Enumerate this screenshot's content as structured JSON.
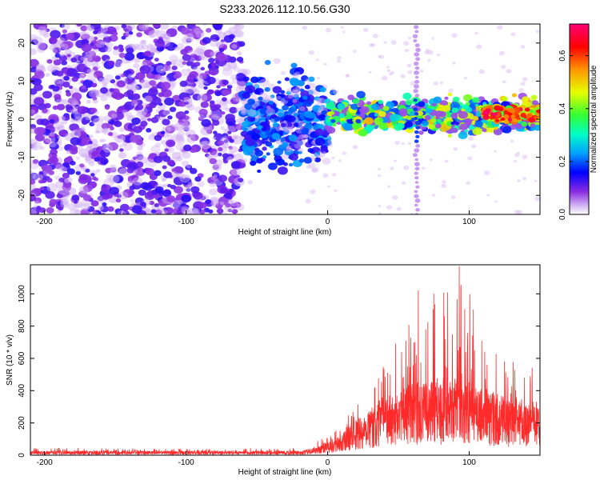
{
  "title": "S233.2026.112.10.56.G30",
  "chart_data": [
    {
      "type": "heatmap",
      "xlabel": "Height of straight line (km)",
      "ylabel": "Frequency (Hz)",
      "xlim": [
        -210,
        150
      ],
      "ylim": [
        -25,
        25
      ],
      "xticks": [
        -200,
        -100,
        0,
        100
      ],
      "yticks": [
        -20,
        -10,
        0,
        10,
        20
      ],
      "colorbar": {
        "label": "Normalized spectral amplitude",
        "range": [
          0.0,
          0.72
        ],
        "ticks": [
          0.0,
          0.2,
          0.4,
          0.6
        ],
        "tick_labels": [
          "0.0",
          "0.2",
          "0.4",
          "0.6"
        ],
        "colors": [
          "#ffffff",
          "#c8a8f0",
          "#8a2be2",
          "#0000ff",
          "#00b4ff",
          "#00ffc8",
          "#32ff32",
          "#e6ff00",
          "#ff9600",
          "#ff0000",
          "#ff0078"
        ]
      },
      "regions": [
        {
          "x_range": [
            -210,
            -60
          ],
          "freq_spread": [
            -25,
            25
          ],
          "amplitude": 0.08,
          "pattern": "scattered noise"
        },
        {
          "x_range": [
            -60,
            0
          ],
          "freq_spread": [
            -12,
            10
          ],
          "amplitude": 0.12,
          "pattern": "narrowing band"
        },
        {
          "x_range": [
            0,
            150
          ],
          "freq_spread": [
            -3,
            5
          ],
          "amplitude": 0.35,
          "pattern": "narrow band near 0-2 Hz"
        },
        {
          "x_range": [
            110,
            150
          ],
          "freq_spread": [
            0,
            3
          ],
          "amplitude": 0.6,
          "pattern": "strong band"
        }
      ],
      "vertical_streak_x": 63
    },
    {
      "type": "line",
      "xlabel": "Height of straight line (km)",
      "ylabel": "SNR (10 * v/v)",
      "xlim": [
        -210,
        150
      ],
      "ylim": [
        0,
        1180
      ],
      "xticks": [
        -200,
        -100,
        0,
        100
      ],
      "yticks": [
        0,
        200,
        400,
        600,
        800,
        1000
      ],
      "series": [
        {
          "name": "SNR",
          "color": "#ff2a2a",
          "profile_x": [
            -210,
            -100,
            -20,
            -10,
            0,
            10,
            20,
            30,
            40,
            50,
            60,
            70,
            80,
            90,
            100,
            110,
            120,
            130,
            140,
            150
          ],
          "profile_peak": [
            45,
            40,
            50,
            75,
            120,
            200,
            300,
            420,
            580,
            720,
            900,
            1000,
            1050,
            1170,
            1050,
            700,
            640,
            580,
            550,
            530
          ],
          "profile_median": [
            15,
            15,
            15,
            25,
            45,
            80,
            130,
            170,
            210,
            240,
            260,
            260,
            260,
            270,
            260,
            230,
            220,
            210,
            200,
            190
          ],
          "notable_peaks": [
            {
              "x": 48,
              "y": 690
            },
            {
              "x": 64,
              "y": 1020
            },
            {
              "x": 75,
              "y": 1000
            },
            {
              "x": 93,
              "y": 1170
            },
            {
              "x": 111,
              "y": 640
            },
            {
              "x": 125,
              "y": 580
            }
          ]
        }
      ]
    }
  ]
}
